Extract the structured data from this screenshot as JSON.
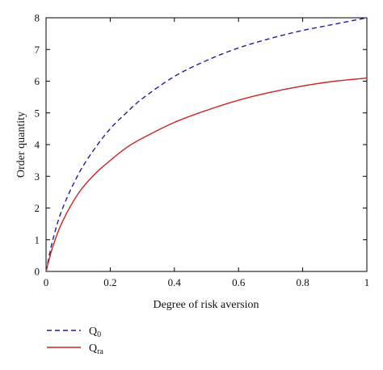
{
  "chart_data": {
    "type": "line",
    "title": "",
    "xlabel": "Degree of risk aversion",
    "ylabel": "Order quantity",
    "xlim": [
      0,
      1
    ],
    "ylim": [
      0,
      8
    ],
    "xticks": [
      0,
      0.2,
      0.4,
      0.6,
      0.8,
      1
    ],
    "xtick_labels": [
      "0",
      "0.2",
      "0.4",
      "0.6",
      "0.8",
      "1"
    ],
    "yticks": [
      0,
      1,
      2,
      3,
      4,
      5,
      6,
      7,
      8
    ],
    "ytick_labels": [
      "0",
      "1",
      "2",
      "3",
      "4",
      "5",
      "6",
      "7",
      "8"
    ],
    "grid": false,
    "legend_position": "bottom-left",
    "x": [
      0,
      0.02,
      0.05,
      0.1,
      0.15,
      0.2,
      0.25,
      0.3,
      0.4,
      0.5,
      0.6,
      0.7,
      0.8,
      0.9,
      1.0
    ],
    "series": [
      {
        "legend_main": "Q",
        "legend_sub": "0",
        "color": "#1f1fa0",
        "style": "dashed",
        "values": [
          0,
          0.95,
          1.95,
          3.05,
          3.85,
          4.5,
          5.0,
          5.45,
          6.15,
          6.65,
          7.05,
          7.35,
          7.6,
          7.8,
          8.0
        ]
      },
      {
        "legend_main": "Q",
        "legend_sub": "ra",
        "color": "#cc2222",
        "style": "solid",
        "values": [
          0,
          0.75,
          1.55,
          2.45,
          3.05,
          3.5,
          3.9,
          4.2,
          4.7,
          5.08,
          5.4,
          5.65,
          5.85,
          6.0,
          6.1
        ]
      }
    ]
  }
}
